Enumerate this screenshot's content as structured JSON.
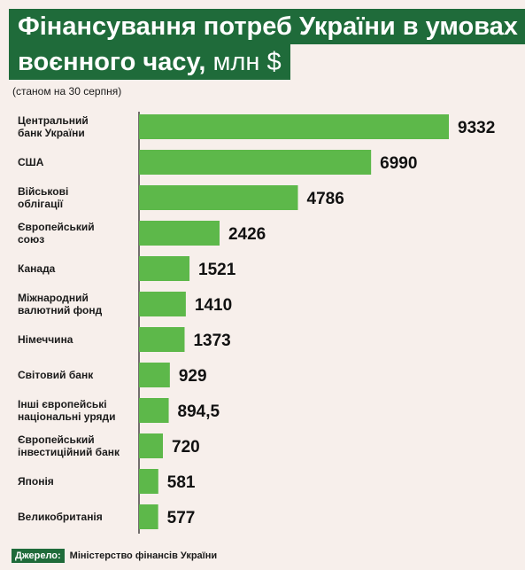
{
  "title": {
    "line1": "Фінансування потреб України в умовах",
    "line2_main": "воєнного часу,",
    "line2_unit": " млн $"
  },
  "subtitle": "(станом на 30 серпня)",
  "source": {
    "label": "Джерело:",
    "text": "Міністерство фінансів України"
  },
  "colors": {
    "bar": "#5db84a",
    "title_bg": "#1f6b3a",
    "background": "#f7efeb",
    "axis": "#1a1a1a"
  },
  "chart_data": {
    "type": "bar",
    "orientation": "horizontal",
    "title": "Фінансування потреб України в умовах воєнного часу, млн $",
    "subtitle": "(станом на 30 серпня)",
    "categories": [
      [
        "Центральний",
        "банк України"
      ],
      [
        "США"
      ],
      [
        "Військові",
        "облігації"
      ],
      [
        "Європейський",
        "союз"
      ],
      [
        "Канада"
      ],
      [
        "Міжнародний",
        "валютний фонд"
      ],
      [
        "Німеччина"
      ],
      [
        "Світовий банк"
      ],
      [
        "Інші європейські",
        "національні уряди"
      ],
      [
        "Європейський",
        "інвестиційний банк"
      ],
      [
        "Японія"
      ],
      [
        "Великобританія"
      ]
    ],
    "values": [
      9332,
      6990,
      4786,
      2426,
      1521,
      1410,
      1373,
      929,
      894.5,
      720,
      581,
      577
    ],
    "value_labels": [
      "9332",
      "6990",
      "4786",
      "2426",
      "1521",
      "1410",
      "1373",
      "929",
      "894,5",
      "720",
      "581",
      "577"
    ],
    "xlim": [
      0,
      9332
    ],
    "grid": false,
    "legend": "none"
  }
}
